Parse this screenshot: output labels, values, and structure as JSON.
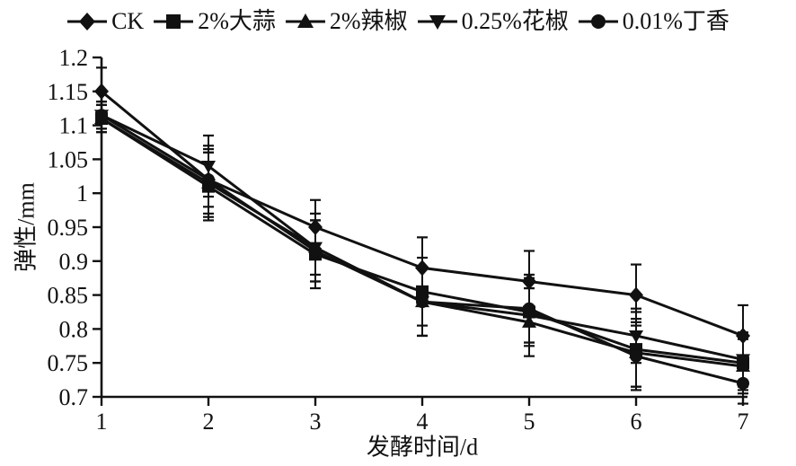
{
  "chart_data": {
    "type": "line",
    "title": "",
    "xlabel": "发酵时间/d",
    "ylabel": "弹性/mm",
    "xlim": [
      1,
      7
    ],
    "ylim": [
      0.7,
      1.2
    ],
    "x_tick_labels": [
      "1",
      "2",
      "3",
      "4",
      "5",
      "6",
      "7"
    ],
    "y_tick_labels": [
      "1.2",
      "1.15",
      "1.1",
      "1.05",
      "1",
      "0.95",
      "0.9",
      "0.85",
      "0.8",
      "0.75",
      "0.7"
    ],
    "grid": false,
    "legend_position": "top",
    "line_color": "#111111",
    "x": [
      1,
      2,
      3,
      4,
      5,
      6,
      7
    ],
    "series": [
      {
        "name": "CK",
        "marker": "diamond",
        "values": [
          1.15,
          1.02,
          0.95,
          0.89,
          0.87,
          0.85,
          0.79
        ],
        "errors": [
          0.035,
          0.05,
          0.04,
          0.045,
          0.045,
          0.045,
          0.045
        ]
      },
      {
        "name": "2%大蒜",
        "marker": "square",
        "values": [
          1.11,
          1.01,
          0.91,
          0.855,
          0.825,
          0.77,
          0.75
        ],
        "errors": [
          0.02,
          0.05,
          0.05,
          0.05,
          0.05,
          0.055,
          0.04
        ]
      },
      {
        "name": "2%辣椒",
        "marker": "triangle-up",
        "values": [
          1.11,
          1.015,
          0.92,
          0.84,
          0.81,
          0.765,
          0.745
        ],
        "errors": [
          0.02,
          0.05,
          0.05,
          0.05,
          0.05,
          0.05,
          0.04
        ]
      },
      {
        "name": "0.25%花椒",
        "marker": "triangle-down",
        "values": [
          1.115,
          1.04,
          0.92,
          0.84,
          0.82,
          0.79,
          0.755
        ],
        "errors": [
          0.02,
          0.045,
          0.04,
          0.05,
          0.04,
          0.04,
          0.04
        ]
      },
      {
        "name": "0.01%丁香",
        "marker": "circle",
        "values": [
          1.115,
          1.02,
          0.915,
          0.84,
          0.83,
          0.76,
          0.72
        ],
        "errors": [
          0.02,
          0.04,
          0.045,
          0.05,
          0.05,
          0.05,
          0.03
        ]
      }
    ]
  }
}
